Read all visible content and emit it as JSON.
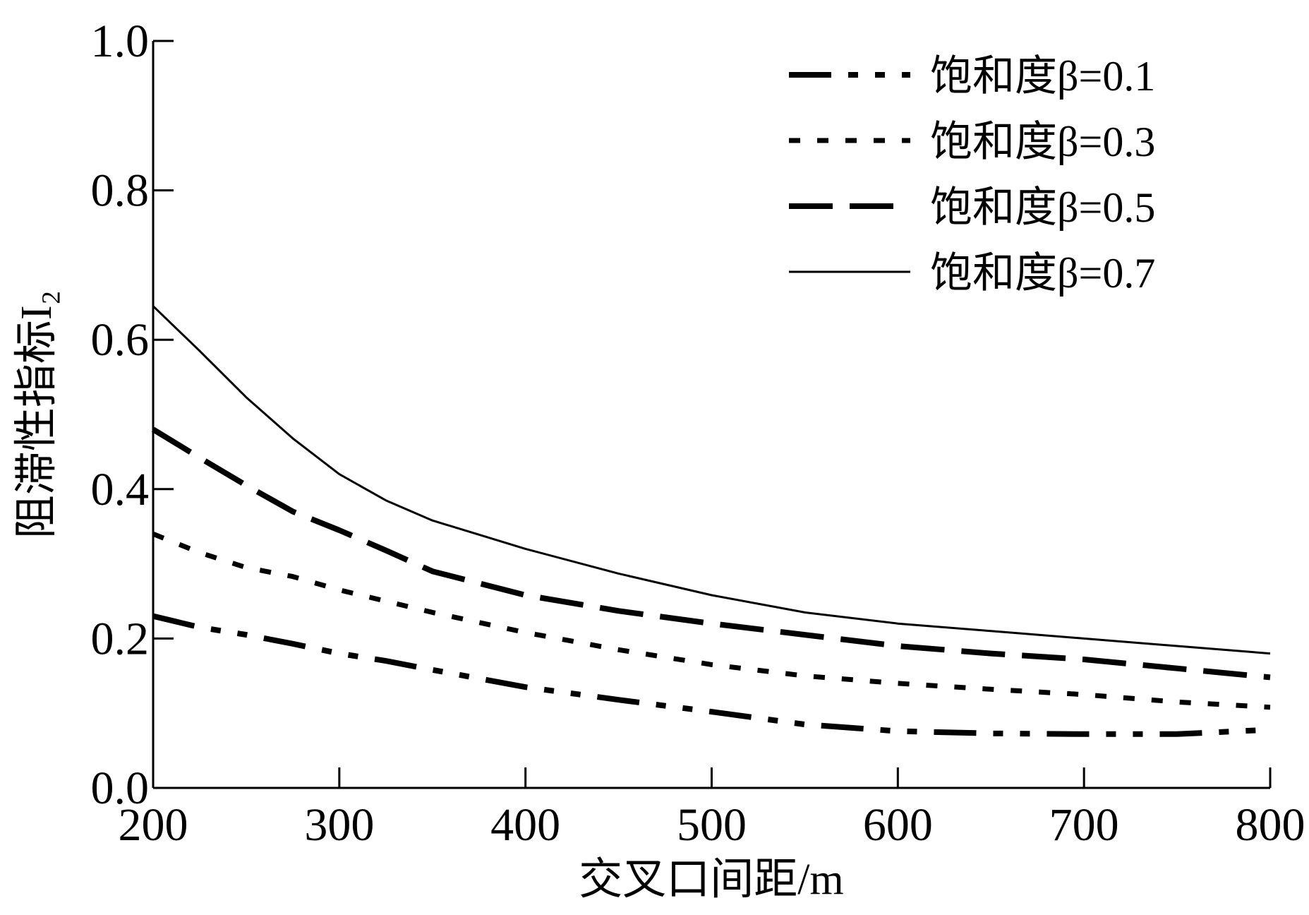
{
  "chart_data": {
    "type": "line",
    "xlabel": "交叉口间距/m",
    "ylabel": "阻滞性指标I₂",
    "xlim": [
      200,
      800
    ],
    "ylim": [
      0.0,
      1.0
    ],
    "x_ticks": [
      200,
      300,
      400,
      500,
      600,
      700,
      800
    ],
    "x_tick_labels": [
      "200",
      "300",
      "400",
      "500",
      "600",
      "700",
      "800"
    ],
    "y_ticks": [
      0.0,
      0.2,
      0.4,
      0.6,
      0.8,
      1.0
    ],
    "y_tick_labels": [
      "0.0",
      "0.2",
      "0.4",
      "0.6",
      "0.8",
      "1.0"
    ],
    "grid": false,
    "legend_position": "top-right",
    "x": [
      200,
      225,
      250,
      275,
      300,
      325,
      350,
      400,
      450,
      500,
      550,
      600,
      650,
      700,
      750,
      800
    ],
    "series": [
      {
        "name": "饱和度β=0.1",
        "style": "dash-dot-dot",
        "values": [
          0.23,
          0.215,
          0.205,
          0.193,
          0.18,
          0.17,
          0.158,
          0.135,
          0.118,
          0.102,
          0.085,
          0.076,
          0.073,
          0.072,
          0.072,
          0.078
        ]
      },
      {
        "name": "饱和度β=0.3",
        "style": "dotted",
        "values": [
          0.34,
          0.315,
          0.295,
          0.283,
          0.265,
          0.25,
          0.235,
          0.208,
          0.185,
          0.165,
          0.15,
          0.14,
          0.132,
          0.125,
          0.115,
          0.108
        ]
      },
      {
        "name": "饱和度β=0.5",
        "style": "dashed",
        "values": [
          0.48,
          0.442,
          0.405,
          0.37,
          0.345,
          0.318,
          0.29,
          0.258,
          0.237,
          0.22,
          0.205,
          0.19,
          0.18,
          0.172,
          0.16,
          0.148
        ]
      },
      {
        "name": "饱和度β=0.7",
        "style": "solid",
        "values": [
          0.645,
          0.585,
          0.523,
          0.468,
          0.42,
          0.385,
          0.358,
          0.32,
          0.287,
          0.258,
          0.235,
          0.22,
          0.21,
          0.2,
          0.19,
          0.18
        ]
      }
    ]
  }
}
